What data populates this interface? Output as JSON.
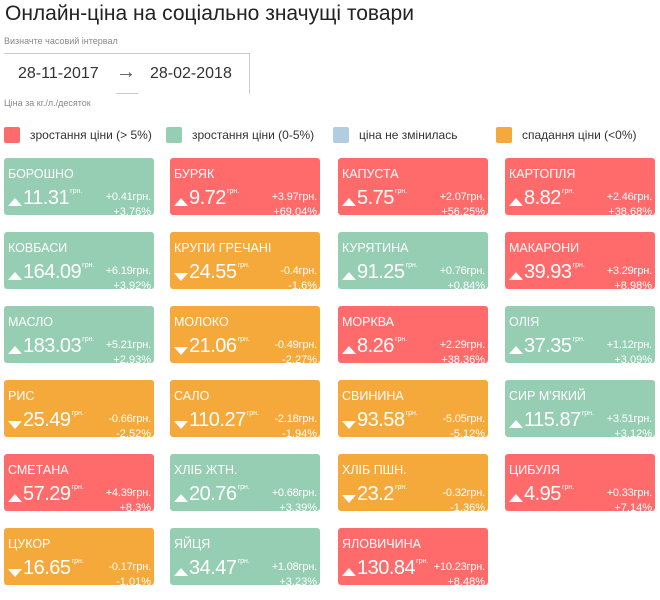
{
  "title": "Онлайн-ціна на соціально значущі товари",
  "interval_label": "Визначте часовий інтервал",
  "date_from": "28-11-2017",
  "date_arrow": "→",
  "date_to": "28-02-2018",
  "unit_note": "Ціна за кг./л./десяток",
  "currency": "грн.",
  "legend": [
    {
      "label": "зростання ціни (> 5%)",
      "color": "#ff6b6b"
    },
    {
      "label": "зростання ціни (0-5%)",
      "color": "#96ceb4"
    },
    {
      "label": "ціна не змінилась",
      "color": "#b3cde0"
    },
    {
      "label": "спадання ціни (<0%)",
      "color": "#f6a93b"
    }
  ],
  "products": [
    {
      "name": "БОРОШНО",
      "price": "11.31",
      "change": "+0.41грн.",
      "percent": "+3.76%",
      "trend": "up",
      "status": "green"
    },
    {
      "name": "БУРЯК",
      "price": "9.72",
      "change": "+3.97грн.",
      "percent": "+69.04%",
      "trend": "up",
      "status": "red"
    },
    {
      "name": "КАПУСТА",
      "price": "5.75",
      "change": "+2.07грн.",
      "percent": "+56.25%",
      "trend": "up",
      "status": "red"
    },
    {
      "name": "КАРТОПЛЯ",
      "price": "8.82",
      "change": "+2.46грн.",
      "percent": "+38.68%",
      "trend": "up",
      "status": "red"
    },
    {
      "name": "КОВБАСИ",
      "price": "164.09",
      "change": "+6.19грн.",
      "percent": "+3.92%",
      "trend": "up",
      "status": "green"
    },
    {
      "name": "КРУПИ ГРЕЧАНІ",
      "price": "24.55",
      "change": "-0.4грн.",
      "percent": "-1.6%",
      "trend": "down",
      "status": "orange"
    },
    {
      "name": "КУРЯТИНА",
      "price": "91.25",
      "change": "+0.76грн.",
      "percent": "+0.84%",
      "trend": "up",
      "status": "green"
    },
    {
      "name": "МАКАРОНИ",
      "price": "39.93",
      "change": "+3.29грн.",
      "percent": "+8.98%",
      "trend": "up",
      "status": "red"
    },
    {
      "name": "МАСЛО",
      "price": "183.03",
      "change": "+5.21грн.",
      "percent": "+2.93%",
      "trend": "up",
      "status": "green"
    },
    {
      "name": "МОЛОКО",
      "price": "21.06",
      "change": "-0.49грн.",
      "percent": "-2.27%",
      "trend": "down",
      "status": "orange"
    },
    {
      "name": "МОРКВА",
      "price": "8.26",
      "change": "+2.29грн.",
      "percent": "+38.36%",
      "trend": "up",
      "status": "red"
    },
    {
      "name": "ОЛІЯ",
      "price": "37.35",
      "change": "+1.12грн.",
      "percent": "+3.09%",
      "trend": "up",
      "status": "green"
    },
    {
      "name": "РИС",
      "price": "25.49",
      "change": "-0.66грн.",
      "percent": "-2.52%",
      "trend": "down",
      "status": "orange"
    },
    {
      "name": "САЛО",
      "price": "110.27",
      "change": "-2.18грн.",
      "percent": "-1.94%",
      "trend": "down",
      "status": "orange"
    },
    {
      "name": "СВИНИНА",
      "price": "93.58",
      "change": "-5.05грн.",
      "percent": "-5.12%",
      "trend": "down",
      "status": "orange"
    },
    {
      "name": "СИР М'ЯКИЙ",
      "price": "115.87",
      "change": "+3.51грн.",
      "percent": "+3.12%",
      "trend": "up",
      "status": "green"
    },
    {
      "name": "СМЕТАНА",
      "price": "57.29",
      "change": "+4.39грн.",
      "percent": "+8.3%",
      "trend": "up",
      "status": "red"
    },
    {
      "name": "ХЛІБ ЖТН.",
      "price": "20.76",
      "change": "+0.68грн.",
      "percent": "+3.39%",
      "trend": "up",
      "status": "green"
    },
    {
      "name": "ХЛІБ ПШН.",
      "price": "23.2",
      "change": "-0.32грн.",
      "percent": "-1.36%",
      "trend": "down",
      "status": "orange"
    },
    {
      "name": "ЦИБУЛЯ",
      "price": "4.95",
      "change": "+0.33грн.",
      "percent": "+7.14%",
      "trend": "up",
      "status": "red"
    },
    {
      "name": "ЦУКОР",
      "price": "16.65",
      "change": "-0.17грн.",
      "percent": "-1.01%",
      "trend": "down",
      "status": "orange"
    },
    {
      "name": "ЯЙЦЯ",
      "price": "34.47",
      "change": "+1.08грн.",
      "percent": "+3.23%",
      "trend": "up",
      "status": "green"
    },
    {
      "name": "ЯЛОВИЧИНА",
      "price": "130.84",
      "change": "+10.23грн.",
      "percent": "+8.48%",
      "trend": "up",
      "status": "red"
    }
  ],
  "status_colors": {
    "red": "#ff6b6b",
    "green": "#96ceb4",
    "orange": "#f6a93b",
    "blue": "#b3cde0"
  }
}
